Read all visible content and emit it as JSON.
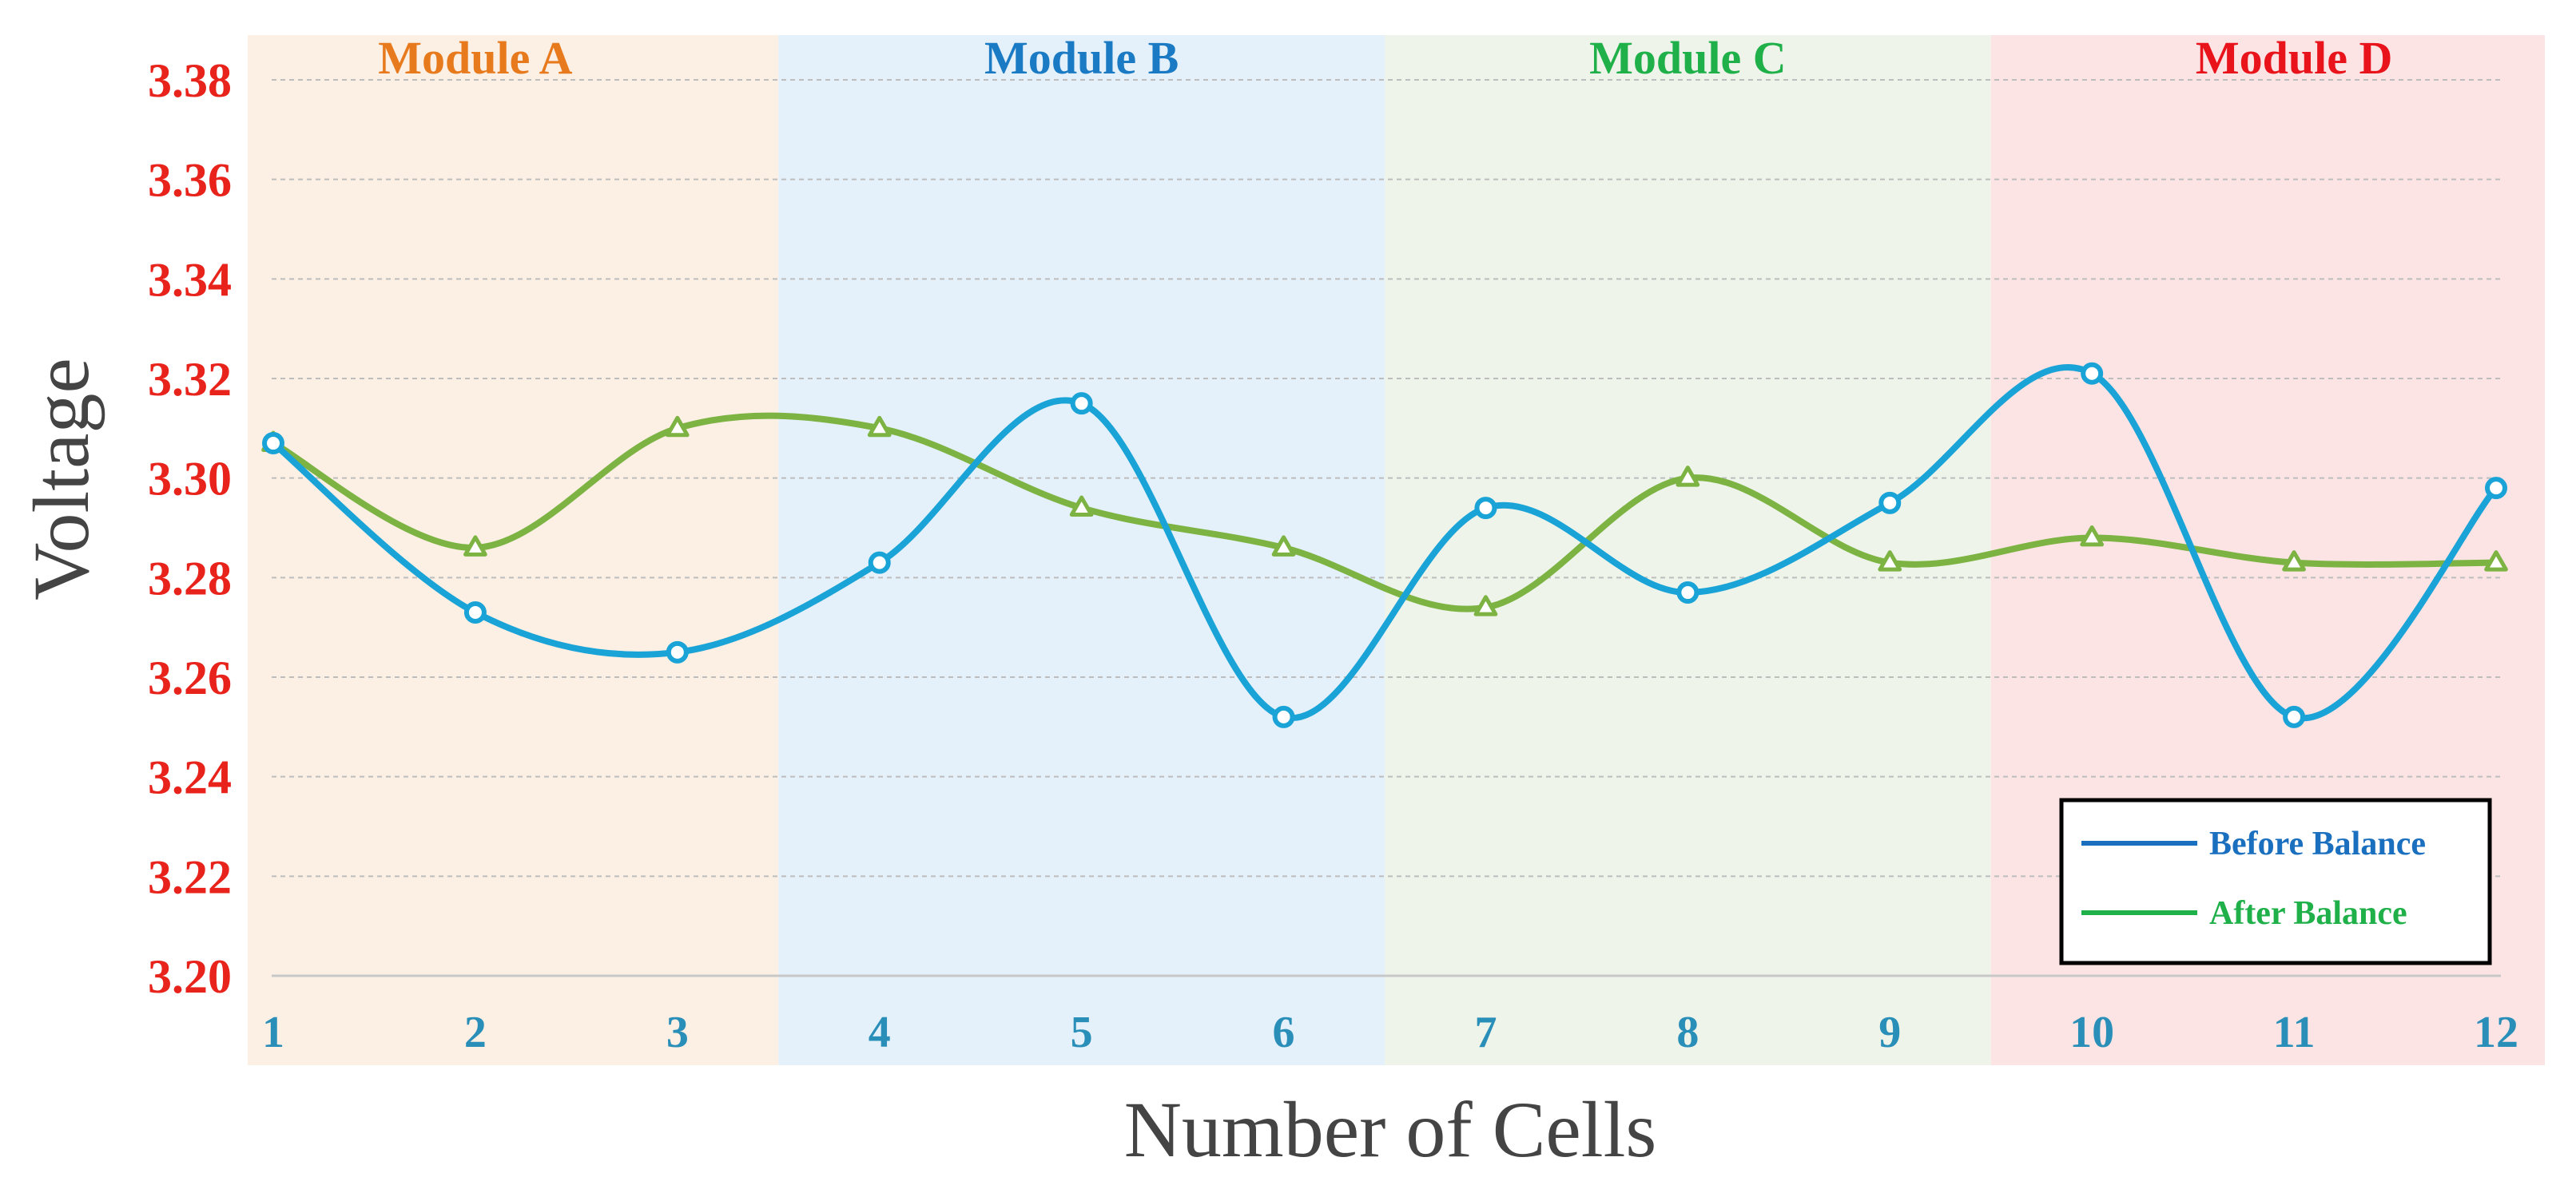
{
  "chart_data": {
    "type": "line",
    "title": "",
    "xlabel": "Number of Cells",
    "ylabel": "Voltage",
    "x": [
      1,
      2,
      3,
      4,
      5,
      6,
      7,
      8,
      9,
      10,
      11,
      12
    ],
    "x_tick_labels": [
      "1",
      "2",
      "3",
      "4",
      "5",
      "6",
      "7",
      "8",
      "9",
      "10",
      "11",
      "12"
    ],
    "ylim": [
      3.2,
      3.38
    ],
    "y_ticks": [
      3.2,
      3.22,
      3.24,
      3.26,
      3.28,
      3.3,
      3.32,
      3.34,
      3.36,
      3.38
    ],
    "y_tick_labels": [
      "3.20",
      "3.22",
      "3.24",
      "3.26",
      "3.28",
      "3.30",
      "3.32",
      "3.34",
      "3.36",
      "3.38"
    ],
    "grid": true,
    "legend_position": "bottom-right",
    "series": [
      {
        "name": "Before Balance",
        "color": "#1aa3d6",
        "legend_color": "#1a6fbf",
        "marker": "circle",
        "values": [
          3.307,
          3.273,
          3.265,
          3.283,
          3.315,
          3.252,
          3.294,
          3.277,
          3.295,
          3.321,
          3.252,
          3.298
        ]
      },
      {
        "name": "After Balance",
        "color": "#7cb342",
        "legend_color": "#1fb04a",
        "marker": "triangle",
        "values": [
          3.307,
          3.286,
          3.31,
          3.31,
          3.294,
          3.286,
          3.274,
          3.3,
          3.283,
          3.288,
          3.283,
          3.283
        ]
      }
    ],
    "regions": [
      {
        "label": "Module A",
        "from": 1,
        "to": 3,
        "bg": "#fcefe4",
        "color": "#e87a1e"
      },
      {
        "label": "Module B",
        "from": 4,
        "to": 6,
        "bg": "#e4f0fa",
        "color": "#1a7bc4"
      },
      {
        "label": "Module C",
        "from": 7,
        "to": 9,
        "bg": "#eff4eb",
        "color": "#1fb04a"
      },
      {
        "label": "Module D",
        "from": 10,
        "to": 12,
        "bg": "#fce4e4",
        "color": "#e8131b"
      }
    ],
    "axis_colors": {
      "y_ticks": "#e8231b",
      "x_ticks": "#2a8fb8",
      "labels": "#444444"
    }
  }
}
